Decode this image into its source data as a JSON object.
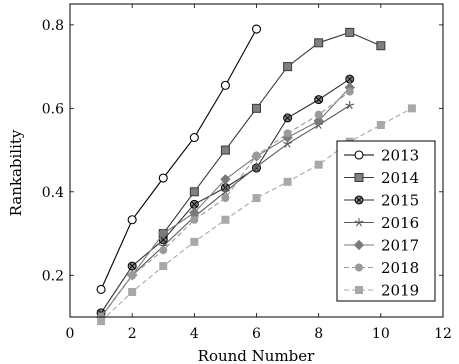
{
  "chart_data": {
    "type": "line",
    "title": "",
    "xlabel": "Round Number",
    "ylabel": "Rankability",
    "xlim": [
      0,
      12
    ],
    "ylim": [
      0.1,
      0.85
    ],
    "xticks": [
      0,
      2,
      4,
      6,
      8,
      10,
      12
    ],
    "yticks": [
      0.2,
      0.4,
      0.6,
      0.8
    ],
    "xtick_labels": [
      "0",
      "2",
      "4",
      "6",
      "8",
      "10",
      "12"
    ],
    "ytick_labels": [
      "0.2",
      "0.4",
      "0.6",
      "0.8"
    ],
    "grid": false,
    "legend_position": "bottom-right",
    "series": [
      {
        "name": "2013",
        "color": "#000000",
        "marker": "circle-open",
        "dash": "solid",
        "x": [
          1,
          2,
          3,
          4,
          5,
          6
        ],
        "y": [
          0.166,
          0.333,
          0.433,
          0.53,
          0.655,
          0.79
        ]
      },
      {
        "name": "2014",
        "color": "#3a3a3a",
        "marker": "square-gray",
        "dash": "solid",
        "x": [
          3,
          4,
          5,
          6,
          7,
          8,
          9,
          10
        ],
        "y": [
          0.3,
          0.4,
          0.5,
          0.6,
          0.7,
          0.757,
          0.782,
          0.75
        ]
      },
      {
        "name": "2015",
        "color": "#303030",
        "marker": "circle-x",
        "dash": "solid",
        "x": [
          1,
          2,
          3,
          4,
          5,
          6,
          7,
          8,
          9
        ],
        "y": [
          0.11,
          0.222,
          0.285,
          0.37,
          0.41,
          0.457,
          0.577,
          0.621,
          0.67
        ]
      },
      {
        "name": "2016",
        "color": "#5a5a5a",
        "marker": "star",
        "dash": "solid",
        "x": [
          1,
          2,
          3,
          4,
          5,
          6,
          7,
          8,
          9
        ],
        "y": [
          0.1,
          0.2,
          0.27,
          0.34,
          0.4,
          0.46,
          0.515,
          0.56,
          0.607
        ]
      },
      {
        "name": "2017",
        "color": "#7a7a7a",
        "marker": "diamond",
        "dash": "solid",
        "x": [
          1,
          2,
          3,
          4,
          5,
          6,
          7,
          8,
          9
        ],
        "y": [
          0.1,
          0.2,
          0.3,
          0.35,
          0.43,
          0.485,
          0.53,
          0.57,
          0.65
        ]
      },
      {
        "name": "2018",
        "color": "#9a9a9a",
        "marker": "circle-gray",
        "dash": "dashed",
        "x": [
          1,
          2,
          3,
          4,
          5,
          6,
          7,
          8,
          9
        ],
        "y": [
          0.1,
          0.2,
          0.26,
          0.333,
          0.385,
          0.487,
          0.54,
          0.585,
          0.64
        ]
      },
      {
        "name": "2019",
        "color": "#a8a8a8",
        "marker": "square-lightgray",
        "dash": "dashed",
        "x": [
          1,
          2,
          3,
          4,
          5,
          6,
          7,
          8,
          9,
          10,
          11
        ],
        "y": [
          0.09,
          0.16,
          0.222,
          0.28,
          0.333,
          0.385,
          0.424,
          0.465,
          0.52,
          0.56,
          0.6
        ]
      }
    ]
  }
}
